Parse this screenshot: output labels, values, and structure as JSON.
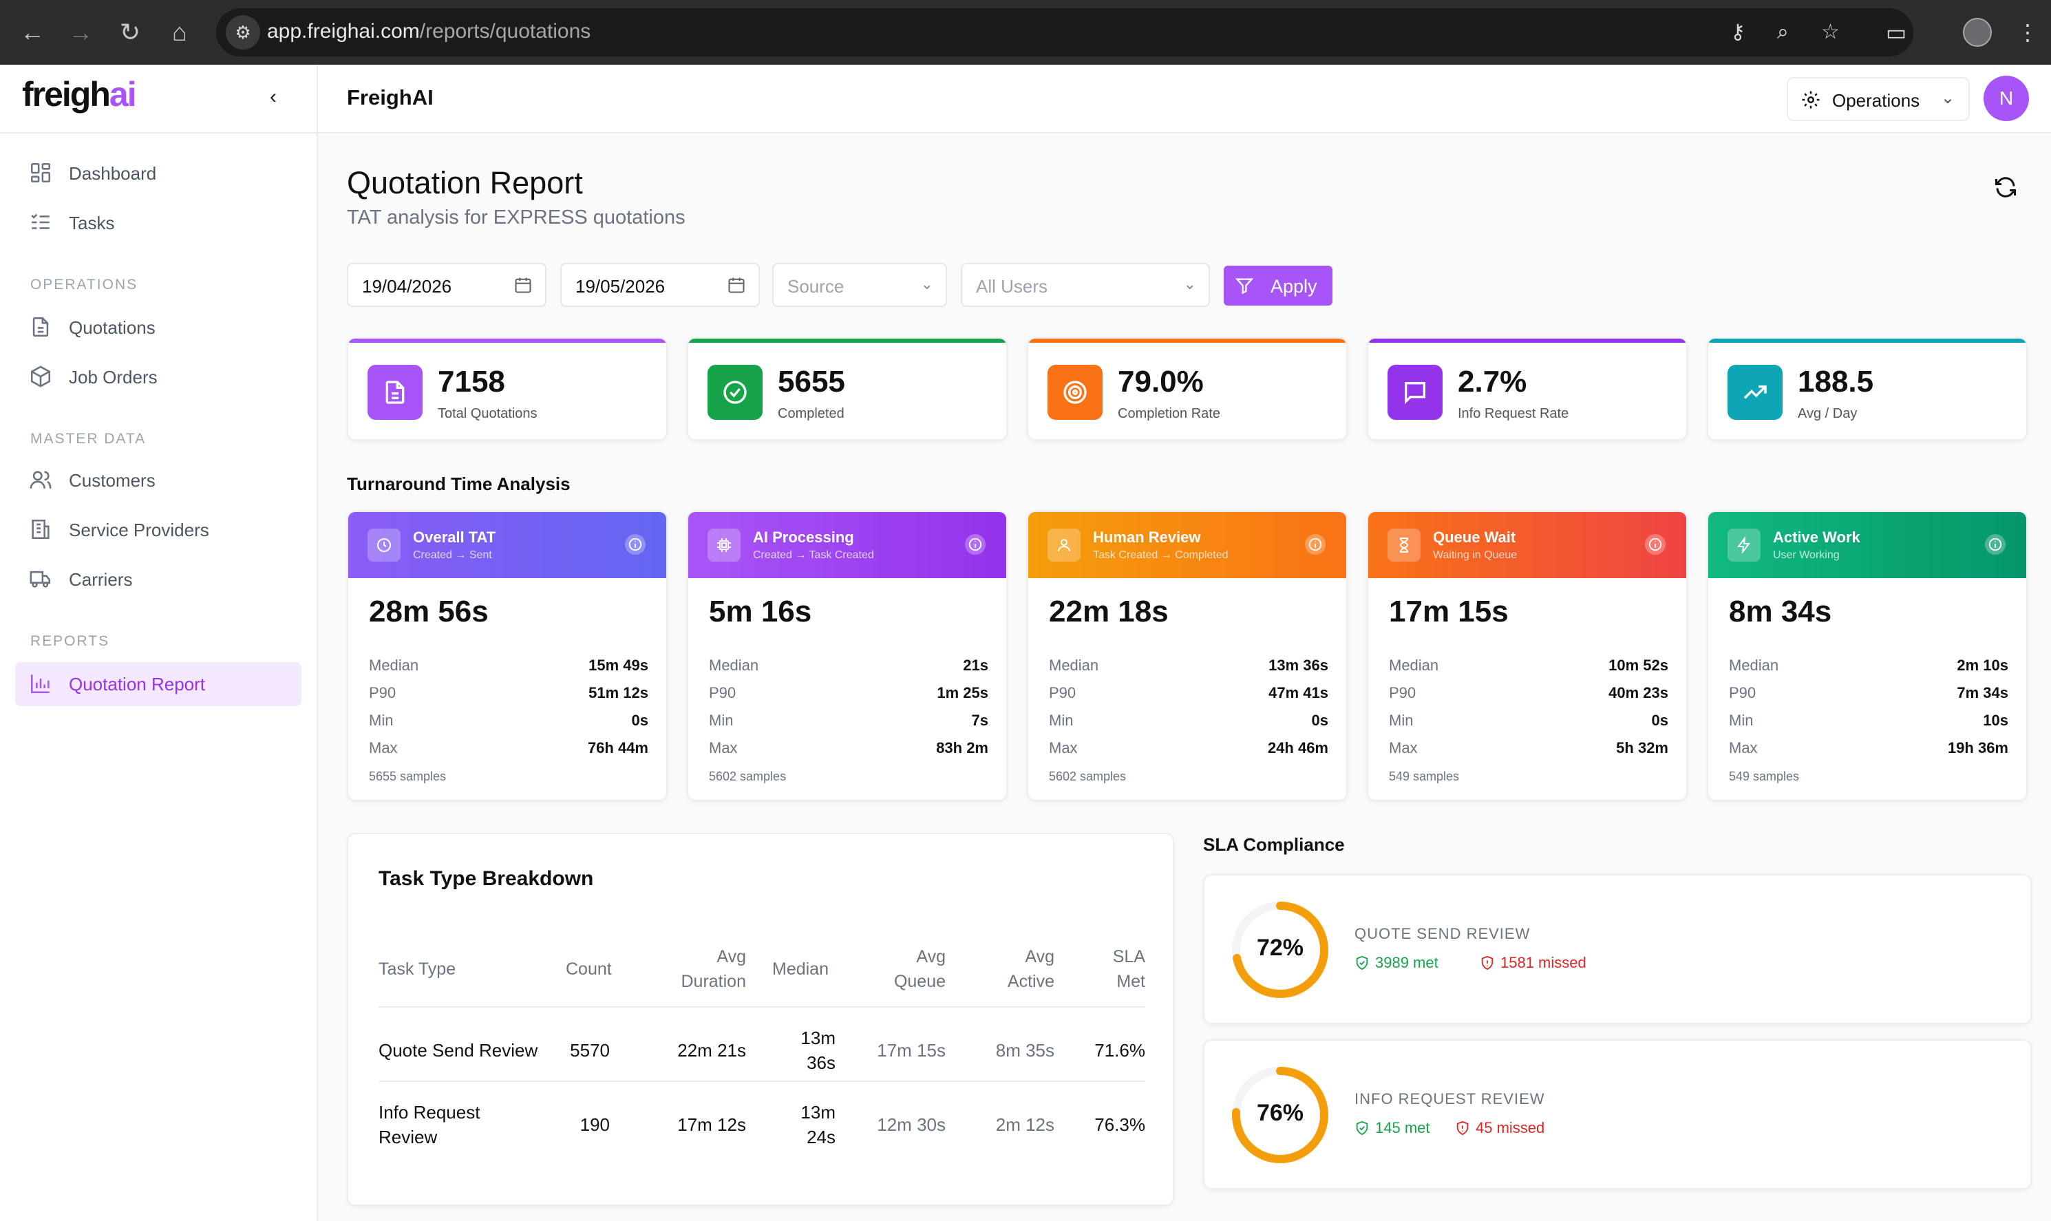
{
  "browser": {
    "url_host": "app.freighai.com",
    "url_path": "/reports/quotations"
  },
  "sidebar": {
    "logo_main": "freigh",
    "logo_accent": "ai",
    "items_top": [
      {
        "label": "Dashboard",
        "icon": "dashboard-icon"
      },
      {
        "label": "Tasks",
        "icon": "tasks-icon"
      }
    ],
    "sections": [
      {
        "title": "OPERATIONS",
        "items": [
          {
            "label": "Quotations",
            "icon": "document-icon"
          },
          {
            "label": "Job Orders",
            "icon": "package-icon"
          }
        ]
      },
      {
        "title": "MASTER DATA",
        "items": [
          {
            "label": "Customers",
            "icon": "users-icon"
          },
          {
            "label": "Service Providers",
            "icon": "building-icon"
          },
          {
            "label": "Carriers",
            "icon": "truck-icon"
          }
        ]
      },
      {
        "title": "REPORTS",
        "items": [
          {
            "label": "Quotation Report",
            "icon": "bar-chart-icon",
            "active": true
          }
        ]
      }
    ]
  },
  "topbar": {
    "brand": "FreighAI",
    "workspace": "Operations",
    "avatar_initial": "N"
  },
  "page": {
    "title": "Quotation Report",
    "subtitle": "TAT analysis for EXPRESS quotations"
  },
  "filters": {
    "date_from": "19/04/2026",
    "date_to": "19/05/2026",
    "source_placeholder": "Source",
    "users_placeholder": "All Users",
    "apply_label": "Apply"
  },
  "stats": [
    {
      "value": "7158",
      "label": "Total Quotations",
      "color": "#a855f7"
    },
    {
      "value": "5655",
      "label": "Completed",
      "color": "#16a34a"
    },
    {
      "value": "79.0%",
      "label": "Completion Rate",
      "color": "#f97316"
    },
    {
      "value": "2.7%",
      "label": "Info Request Rate",
      "color": "#9333ea"
    },
    {
      "value": "188.5",
      "label": "Avg / Day",
      "color": "#0ea5b7"
    }
  ],
  "tat_section_title": "Turnaround Time Analysis",
  "tat": [
    {
      "name": "Overall TAT",
      "desc": "Created → Sent",
      "value": "28m 56s",
      "median": "15m 49s",
      "p90": "51m 12s",
      "min": "0s",
      "max": "76h 44m",
      "samples": "5655 samples"
    },
    {
      "name": "AI Processing",
      "desc": "Created → Task Created",
      "value": "5m 16s",
      "median": "21s",
      "p90": "1m 25s",
      "min": "7s",
      "max": "83h 2m",
      "samples": "5602 samples"
    },
    {
      "name": "Human Review",
      "desc": "Task Created → Completed",
      "value": "22m 18s",
      "median": "13m 36s",
      "p90": "47m 41s",
      "min": "0s",
      "max": "24h 46m",
      "samples": "5602 samples"
    },
    {
      "name": "Queue Wait",
      "desc": "Waiting in Queue",
      "value": "17m 15s",
      "median": "10m 52s",
      "p90": "40m 23s",
      "min": "0s",
      "max": "5h 32m",
      "samples": "549 samples"
    },
    {
      "name": "Active Work",
      "desc": "User Working",
      "value": "8m 34s",
      "median": "2m 10s",
      "p90": "7m 34s",
      "min": "10s",
      "max": "19h 36m",
      "samples": "549 samples"
    }
  ],
  "tat_labels": {
    "median": "Median",
    "p90": "P90",
    "min": "Min",
    "max": "Max"
  },
  "breakdown": {
    "title": "Task Type Breakdown",
    "headers": {
      "type": "Task Type",
      "count": "Count",
      "avg_dur_1": "Avg",
      "avg_dur_2": "Duration",
      "median": "Median",
      "avg_q_1": "Avg",
      "avg_q_2": "Queue",
      "avg_a_1": "Avg",
      "avg_a_2": "Active",
      "sla_1": "SLA",
      "sla_2": "Met"
    },
    "rows": [
      {
        "type_1": "Quote Send Review",
        "type_2": "",
        "count": "5570",
        "avg_duration": "22m 21s",
        "median_1": "13m",
        "median_2": "36s",
        "avg_queue": "17m 15s",
        "avg_active": "8m 35s",
        "sla_met": "71.6%"
      },
      {
        "type_1": "Info Request",
        "type_2": "Review",
        "count": "190",
        "avg_duration": "17m 12s",
        "median_1": "13m",
        "median_2": "24s",
        "avg_queue": "12m 30s",
        "avg_active": "2m 12s",
        "sla_met": "76.3%"
      }
    ]
  },
  "sla": {
    "title": "SLA Compliance",
    "items": [
      {
        "pct_text": "72%",
        "pct": 0.72,
        "name": "QUOTE SEND REVIEW",
        "met": "3989 met",
        "missed": "1581 missed"
      },
      {
        "pct_text": "76%",
        "pct": 0.76,
        "name": "INFO REQUEST REVIEW",
        "met": "145 met",
        "missed": "45 missed"
      }
    ]
  }
}
